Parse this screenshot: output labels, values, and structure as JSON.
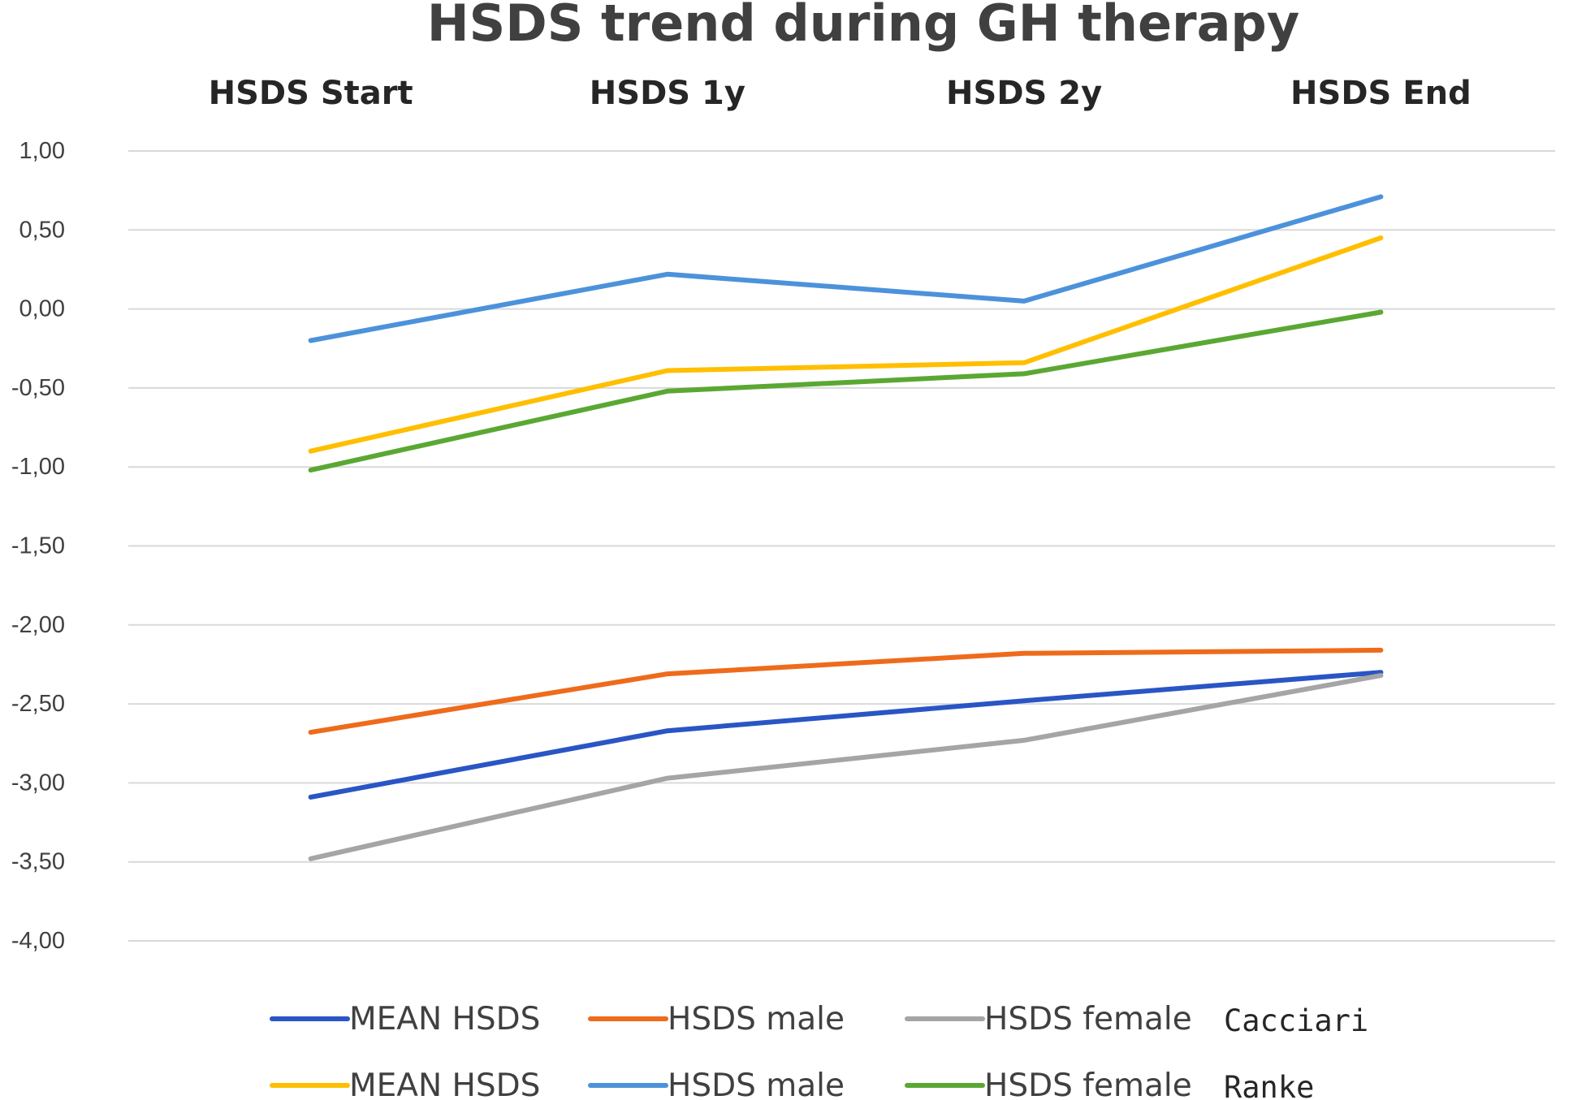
{
  "chart_data": {
    "type": "line",
    "title": "HSDS trend during GH therapy",
    "categories": [
      "HSDS Start",
      "HSDS 1y",
      "HSDS 2y",
      "HSDS End"
    ],
    "ylim": [
      -4,
      1
    ],
    "ytick_values": [
      1,
      0.5,
      0,
      -0.5,
      -1,
      -1.5,
      -2,
      -2.5,
      -3,
      -3.5,
      -4
    ],
    "ytick_labels": [
      "1,00",
      "0,50",
      "0,00",
      "-0,50",
      "-1,00",
      "-1,50",
      "-2,00",
      "-2,50",
      "-3,00",
      "-3,50",
      "-4,00"
    ],
    "grid": true,
    "legend_position": "bottom",
    "series": [
      {
        "name": "MEAN HSDS",
        "group": "Cacciari",
        "color": "#2a55c5",
        "values": [
          -3.09,
          -2.67,
          -2.48,
          -2.3
        ]
      },
      {
        "name": "HSDS male",
        "group": "Cacciari",
        "color": "#ee6b1c",
        "values": [
          -2.68,
          -2.31,
          -2.18,
          -2.16
        ]
      },
      {
        "name": "HSDS female",
        "group": "Cacciari",
        "color": "#a5a5a5",
        "values": [
          -3.48,
          -2.97,
          -2.73,
          -2.32
        ]
      },
      {
        "name": "MEAN HSDS",
        "group": "Ranke",
        "color": "#ffbf00",
        "values": [
          -0.9,
          -0.39,
          -0.34,
          0.45
        ]
      },
      {
        "name": "HSDS male",
        "group": "Ranke",
        "color": "#4c92db",
        "values": [
          -0.2,
          0.22,
          0.05,
          0.71
        ]
      },
      {
        "name": "HSDS female",
        "group": "Ranke",
        "color": "#5aa833",
        "values": [
          -1.02,
          -0.52,
          -0.41,
          -0.02
        ]
      }
    ],
    "legend_groups": [
      "Cacciari",
      "Ranke"
    ]
  }
}
